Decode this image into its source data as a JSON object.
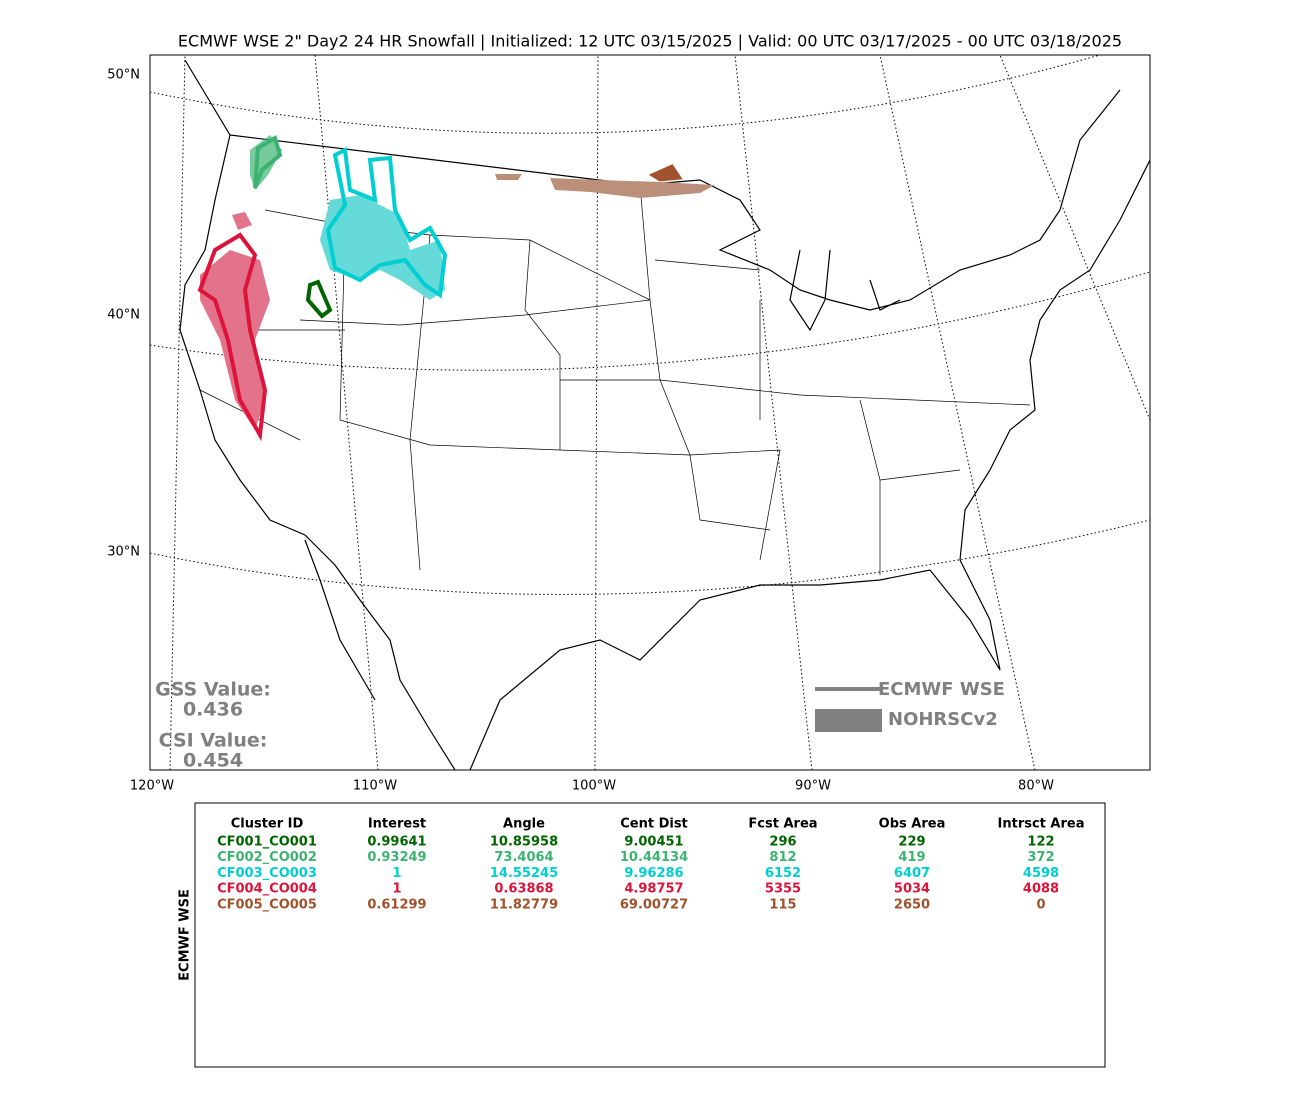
{
  "title": "ECMWF WSE 2\" Day2 24 HR Snowfall | Initialized: 12 UTC 03/15/2025 | Valid: 00 UTC 03/17/2025 - 00 UTC 03/18/2025",
  "map": {
    "lat_labels": [
      "50°N",
      "40°N",
      "30°N"
    ],
    "lon_labels": [
      "120°W",
      "110°W",
      "100°W",
      "90°W",
      "80°W"
    ]
  },
  "scores": {
    "gss_label": "GSS Value:",
    "gss": 0.436,
    "csi_label": "CSI Value:",
    "csi": 0.454
  },
  "legend": {
    "forecast": "ECMWF WSE",
    "observed": "NOHRSCv2"
  },
  "table": {
    "side_label": "ECMWF WSE",
    "columns": [
      "Cluster ID",
      "Interest",
      "Angle",
      "Cent Dist",
      "Fcst Area",
      "Obs Area",
      "Intrsct Area"
    ],
    "rows": [
      {
        "color": "#006400",
        "cells": [
          "CF001_CO001",
          0.99641,
          10.85958,
          9.00451,
          296,
          229,
          122
        ]
      },
      {
        "color": "#3cb371",
        "cells": [
          "CF002_CO002",
          0.93249,
          73.4064,
          10.44134,
          812,
          419,
          372
        ]
      },
      {
        "color": "#00ced1",
        "cells": [
          "CF003_CO003",
          1,
          14.55245,
          9.96286,
          6152,
          6407,
          4598
        ]
      },
      {
        "color": "#dc143c",
        "cells": [
          "CF004_CO004",
          1,
          0.63868,
          4.98757,
          5355,
          5034,
          4088
        ]
      },
      {
        "color": "#a0522d",
        "cells": [
          "CF005_CO005",
          0.61299,
          11.82779,
          69.00727,
          115,
          2650,
          0
        ]
      }
    ]
  }
}
